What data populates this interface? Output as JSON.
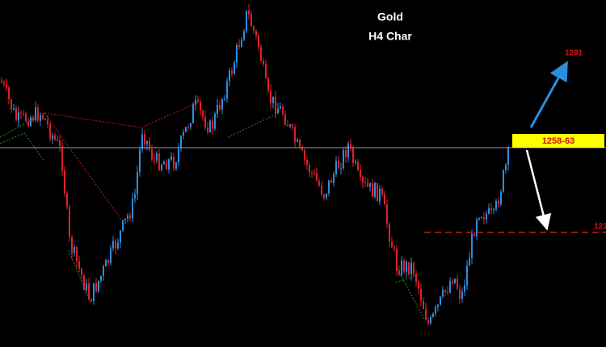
{
  "title": "Gold",
  "subtitle": "H4 Char",
  "labels": {
    "target_up": "1281",
    "resistance": "1258-63",
    "support": "123"
  }
}
